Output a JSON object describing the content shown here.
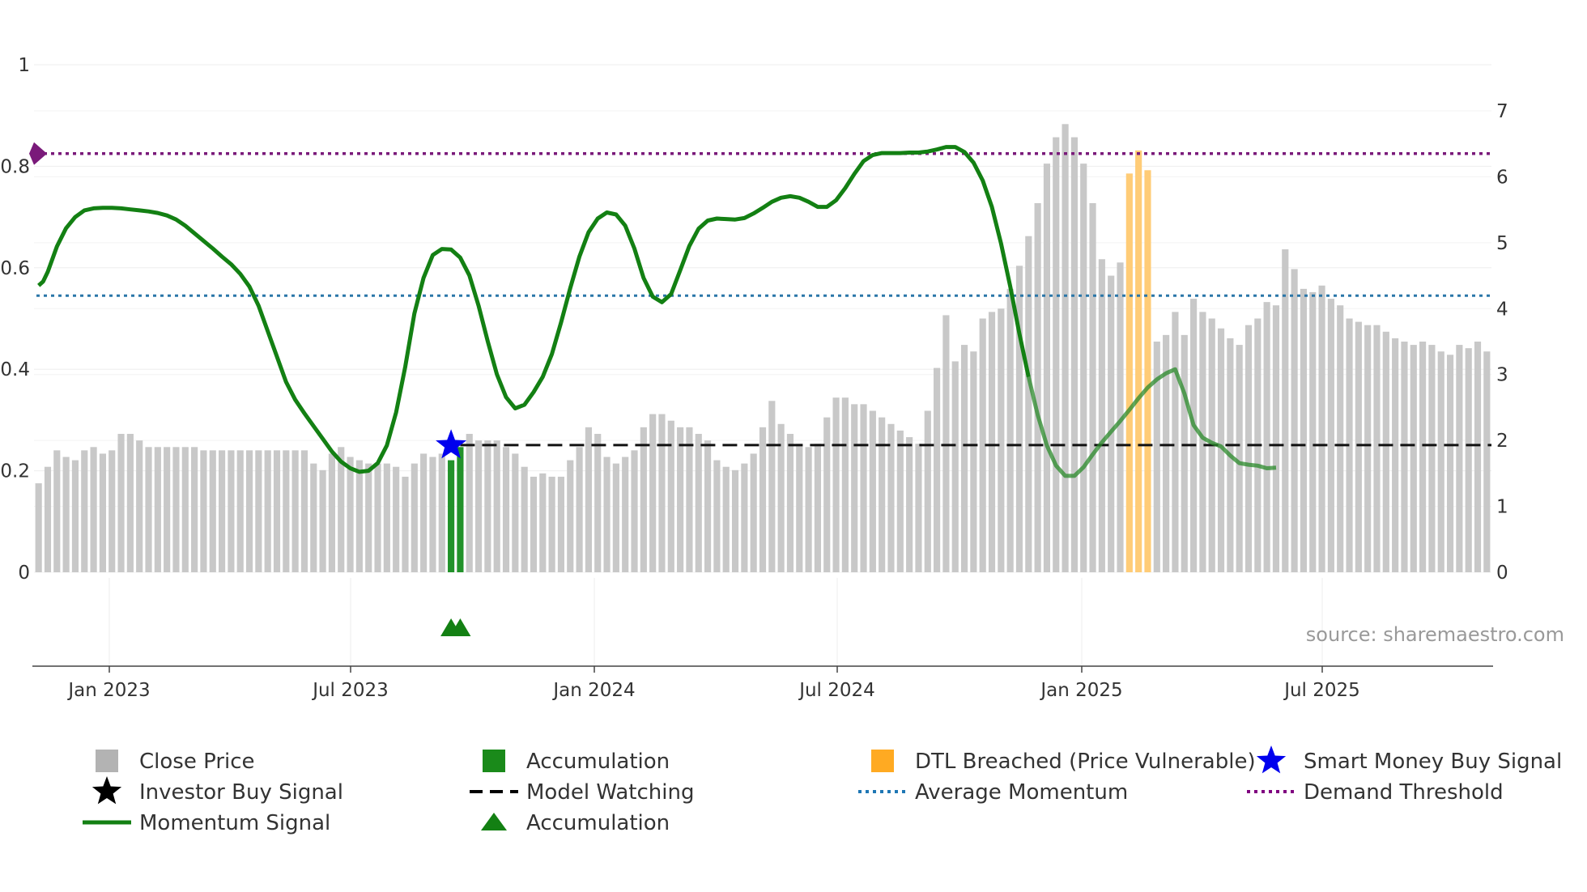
{
  "chart_data": {
    "type": "bar",
    "title": "",
    "source": "source: sharemaestro.com",
    "x_ticks": [
      "Jan 2023",
      "Jul 2023",
      "Jan 2024",
      "Jul 2024",
      "Jan 2025",
      "Jul 2025"
    ],
    "left_axis": {
      "ticks": [
        "0",
        "0.2",
        "0.4",
        "0.6",
        "0.8",
        "1"
      ],
      "range": [
        0,
        1
      ]
    },
    "right_axis": {
      "ticks": [
        "0",
        "1",
        "2",
        "3",
        "4",
        "5",
        "6",
        "7"
      ],
      "range": [
        0,
        7.7
      ]
    },
    "average_momentum": 0.545,
    "demand_threshold": 0.825,
    "model_watching_level": 1.93,
    "close_price": [
      1.35,
      1.6,
      1.85,
      1.75,
      1.7,
      1.85,
      1.9,
      1.8,
      1.85,
      2.1,
      2.1,
      2.0,
      1.9,
      1.9,
      1.9,
      1.9,
      1.9,
      1.9,
      1.85,
      1.85,
      1.85,
      1.85,
      1.85,
      1.85,
      1.85,
      1.85,
      1.85,
      1.85,
      1.85,
      1.85,
      1.65,
      1.55,
      1.8,
      1.9,
      1.75,
      1.7,
      1.65,
      1.65,
      1.65,
      1.6,
      1.45,
      1.65,
      1.8,
      1.75,
      1.8,
      1.9,
      2.1,
      2.1,
      2.0,
      2.0,
      2.0,
      1.9,
      1.8,
      1.6,
      1.45,
      1.5,
      1.45,
      1.45,
      1.7,
      1.9,
      2.2,
      2.1,
      1.75,
      1.65,
      1.75,
      1.85,
      2.2,
      2.4,
      2.4,
      2.3,
      2.2,
      2.2,
      2.1,
      2.0,
      1.7,
      1.6,
      1.55,
      1.65,
      1.8,
      2.2,
      2.6,
      2.25,
      2.1,
      1.95,
      1.9,
      1.95,
      2.35,
      2.65,
      2.65,
      2.55,
      2.55,
      2.45,
      2.35,
      2.25,
      2.15,
      2.05,
      1.95,
      2.45,
      3.1,
      3.9,
      3.2,
      3.45,
      3.35,
      3.85,
      3.95,
      4.0,
      4.3,
      4.65,
      5.1,
      5.6,
      6.2,
      6.6,
      6.8,
      6.6,
      6.2,
      5.6,
      4.75,
      4.5,
      4.7,
      4.25,
      3.95,
      3.9,
      3.5,
      3.6,
      3.95,
      3.6,
      4.15,
      3.95,
      3.85,
      3.7,
      3.55,
      3.45,
      3.75,
      3.85,
      4.1,
      4.05,
      4.9,
      4.6,
      4.3,
      4.25,
      4.35,
      4.15,
      4.05,
      3.85,
      3.8,
      3.75,
      3.75,
      3.65,
      3.55,
      3.5,
      3.45,
      3.5,
      3.45,
      3.35,
      3.3,
      3.45,
      3.4,
      3.5,
      3.35
    ],
    "dtl_breached_bars": [
      119,
      120,
      121
    ],
    "dtl_values": [
      6.05,
      6.4,
      6.1
    ],
    "accumulation_bars": [
      45,
      46
    ],
    "accumulation_values": [
      1.7,
      1.9
    ],
    "momentum": [
      [
        0,
        0.565
      ],
      [
        0.5,
        0.573
      ],
      [
        1,
        0.592
      ],
      [
        2,
        0.642
      ],
      [
        3,
        0.678
      ],
      [
        4,
        0.7
      ],
      [
        5,
        0.713
      ],
      [
        6,
        0.717
      ],
      [
        7,
        0.718
      ],
      [
        8,
        0.718
      ],
      [
        9,
        0.717
      ],
      [
        10,
        0.715
      ],
      [
        11,
        0.713
      ],
      [
        12,
        0.711
      ],
      [
        13,
        0.708
      ],
      [
        14,
        0.703
      ],
      [
        15,
        0.695
      ],
      [
        16,
        0.683
      ],
      [
        17,
        0.668
      ],
      [
        18,
        0.653
      ],
      [
        19,
        0.638
      ],
      [
        20,
        0.622
      ],
      [
        21,
        0.607
      ],
      [
        22,
        0.588
      ],
      [
        23,
        0.563
      ],
      [
        24,
        0.525
      ],
      [
        25,
        0.475
      ],
      [
        26,
        0.425
      ],
      [
        27,
        0.375
      ],
      [
        28,
        0.34
      ],
      [
        29,
        0.313
      ],
      [
        30,
        0.288
      ],
      [
        31,
        0.263
      ],
      [
        32,
        0.238
      ],
      [
        33,
        0.218
      ],
      [
        34,
        0.205
      ],
      [
        35,
        0.198
      ],
      [
        36,
        0.2
      ],
      [
        37,
        0.215
      ],
      [
        38,
        0.25
      ],
      [
        39,
        0.315
      ],
      [
        40,
        0.405
      ],
      [
        41,
        0.51
      ],
      [
        42,
        0.58
      ],
      [
        43,
        0.625
      ],
      [
        44,
        0.637
      ],
      [
        45,
        0.636
      ],
      [
        46,
        0.62
      ],
      [
        47,
        0.585
      ],
      [
        48,
        0.525
      ],
      [
        49,
        0.455
      ],
      [
        50,
        0.39
      ],
      [
        51,
        0.345
      ],
      [
        52,
        0.323
      ],
      [
        53,
        0.33
      ],
      [
        54,
        0.355
      ],
      [
        55,
        0.385
      ],
      [
        56,
        0.43
      ],
      [
        57,
        0.492
      ],
      [
        58,
        0.56
      ],
      [
        59,
        0.622
      ],
      [
        60,
        0.67
      ],
      [
        61,
        0.697
      ],
      [
        62,
        0.709
      ],
      [
        63,
        0.705
      ],
      [
        64,
        0.683
      ],
      [
        65,
        0.638
      ],
      [
        66,
        0.58
      ],
      [
        67,
        0.543
      ],
      [
        68,
        0.532
      ],
      [
        69,
        0.548
      ],
      [
        70,
        0.595
      ],
      [
        71,
        0.643
      ],
      [
        72,
        0.677
      ],
      [
        73,
        0.693
      ],
      [
        74,
        0.697
      ],
      [
        75,
        0.696
      ],
      [
        76,
        0.695
      ],
      [
        77,
        0.698
      ],
      [
        78,
        0.707
      ],
      [
        79,
        0.718
      ],
      [
        80,
        0.73
      ],
      [
        81,
        0.738
      ],
      [
        82,
        0.741
      ],
      [
        83,
        0.738
      ],
      [
        84,
        0.73
      ],
      [
        85,
        0.72
      ],
      [
        86,
        0.72
      ],
      [
        87,
        0.733
      ],
      [
        88,
        0.757
      ],
      [
        89,
        0.785
      ],
      [
        90,
        0.81
      ],
      [
        91,
        0.822
      ],
      [
        92,
        0.826
      ],
      [
        93,
        0.826
      ],
      [
        94,
        0.826
      ],
      [
        95,
        0.827
      ],
      [
        96,
        0.827
      ],
      [
        97,
        0.829
      ],
      [
        98,
        0.833
      ],
      [
        99,
        0.838
      ],
      [
        100,
        0.838
      ],
      [
        101,
        0.828
      ],
      [
        102,
        0.807
      ],
      [
        103,
        0.772
      ],
      [
        104,
        0.72
      ],
      [
        105,
        0.648
      ],
      [
        106,
        0.563
      ],
      [
        107,
        0.47
      ],
      [
        108,
        0.385
      ],
      [
        109,
        0.31
      ],
      [
        110,
        0.25
      ],
      [
        111,
        0.21
      ],
      [
        112,
        0.19
      ],
      [
        113,
        0.19
      ],
      [
        114,
        0.207
      ],
      [
        115,
        0.232
      ],
      [
        116,
        0.256
      ],
      [
        117,
        0.277
      ],
      [
        118,
        0.298
      ],
      [
        119,
        0.32
      ],
      [
        120,
        0.343
      ],
      [
        121,
        0.364
      ],
      [
        122,
        0.38
      ],
      [
        123,
        0.392
      ],
      [
        124,
        0.4
      ],
      [
        125,
        0.352
      ],
      [
        126,
        0.29
      ],
      [
        127,
        0.265
      ],
      [
        128,
        0.255
      ],
      [
        129,
        0.248
      ],
      [
        130,
        0.23
      ],
      [
        131,
        0.215
      ],
      [
        132,
        0.212
      ],
      [
        133,
        0.21
      ],
      [
        134,
        0.205
      ],
      [
        135,
        0.206
      ]
    ],
    "momentum_faded_from": 108,
    "signal_markers": {
      "smart_money_buy_index": 45.5,
      "smart_money_buy_value": 0.25,
      "accumulation_triangles": [
        45,
        46
      ]
    }
  },
  "legend": {
    "items": [
      {
        "label": "Close Price",
        "symbol": "square",
        "color": "#b3b3b3"
      },
      {
        "label": "Accumulation",
        "symbol": "square",
        "color": "#1a8a1a"
      },
      {
        "label": "DTL Breached (Price Vulnerable)",
        "symbol": "square",
        "color": "#ffaa22"
      },
      {
        "label": "Smart Money Buy Signal",
        "symbol": "star",
        "color": "#0000ee"
      },
      {
        "label": "Investor Buy Signal",
        "symbol": "star",
        "color": "#000000"
      },
      {
        "label": "Model Watching",
        "symbol": "dash",
        "color": "#000000"
      },
      {
        "label": "Average Momentum",
        "symbol": "dot",
        "color": "#1f77b4"
      },
      {
        "label": "Demand Threshold",
        "symbol": "dot",
        "color": "#800080"
      },
      {
        "label": "Momentum Signal",
        "symbol": "line",
        "color": "#138013"
      },
      {
        "label": "Accumulation",
        "symbol": "triangle",
        "color": "#138013"
      }
    ]
  }
}
